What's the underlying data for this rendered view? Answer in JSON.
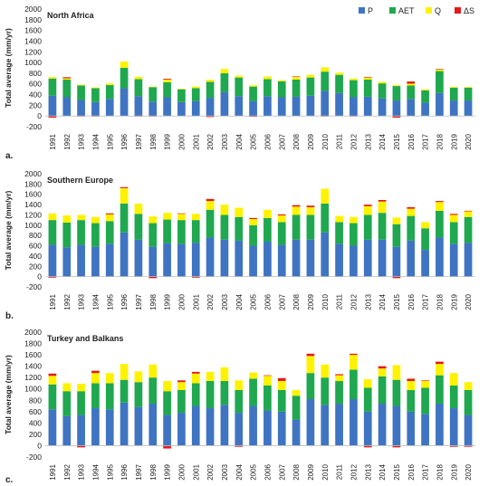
{
  "legend": [
    {
      "key": "P",
      "label": "P",
      "color": "#3F74C2"
    },
    {
      "key": "AET",
      "label": "AET",
      "color": "#1FA84F"
    },
    {
      "key": "Q",
      "label": "Q",
      "color": "#FFF200"
    },
    {
      "key": "dS",
      "label": "ΔS",
      "color": "#E3191B"
    }
  ],
  "legend_placement": "top-right (inside panel a)",
  "chart_data": [
    {
      "type": "bar",
      "stacked": true,
      "panel_label": "a.",
      "title": "North Africa",
      "ylabel": "Total average (mm/yr)",
      "xlabel": "",
      "ylim": [
        -200,
        2000
      ],
      "yticks": [
        -200,
        0,
        200,
        400,
        600,
        800,
        1000,
        1200,
        1400,
        1600,
        1800,
        2000
      ],
      "grid": false,
      "categories": [
        "1991",
        "1992",
        "1993",
        "1994",
        "1995",
        "1996",
        "1997",
        "1998",
        "1999",
        "2000",
        "2001",
        "2002",
        "2003",
        "2004",
        "2005",
        "2006",
        "2007",
        "2008",
        "2009",
        "2010",
        "2011",
        "2012",
        "2013",
        "2014",
        "2015",
        "2016",
        "2017",
        "2018",
        "2019",
        "2020"
      ],
      "series": [
        {
          "name": "P",
          "values": [
            380,
            350,
            300,
            260,
            320,
            520,
            370,
            270,
            350,
            260,
            280,
            340,
            450,
            370,
            280,
            370,
            350,
            360,
            380,
            470,
            430,
            350,
            360,
            330,
            290,
            320,
            250,
            430,
            290,
            290
          ]
        },
        {
          "name": "AET",
          "values": [
            320,
            330,
            270,
            260,
            260,
            380,
            320,
            270,
            280,
            240,
            240,
            300,
            350,
            350,
            270,
            320,
            300,
            320,
            340,
            360,
            340,
            320,
            320,
            280,
            270,
            250,
            230,
            410,
            240,
            240
          ]
        },
        {
          "name": "Q",
          "values": [
            30,
            25,
            15,
            15,
            30,
            120,
            45,
            10,
            50,
            10,
            30,
            40,
            80,
            35,
            25,
            50,
            20,
            50,
            50,
            80,
            40,
            30,
            40,
            30,
            20,
            35,
            20,
            30,
            15,
            15
          ]
        },
        {
          "name": "ΔS",
          "values": [
            -30,
            20,
            -10,
            -10,
            0,
            0,
            -10,
            -10,
            15,
            0,
            0,
            -20,
            0,
            0,
            -15,
            0,
            0,
            10,
            0,
            -10,
            0,
            -10,
            10,
            0,
            -30,
            40,
            0,
            10,
            0,
            0
          ]
        }
      ]
    },
    {
      "type": "bar",
      "stacked": true,
      "panel_label": "b.",
      "title": "Southern Europe",
      "ylabel": "Total average (mm/yr)",
      "xlabel": "",
      "ylim": [
        -200,
        2000
      ],
      "yticks": [
        -200,
        0,
        200,
        400,
        600,
        800,
        1000,
        1200,
        1400,
        1600,
        1800,
        2000
      ],
      "grid": false,
      "categories": [
        "1991",
        "1992",
        "1993",
        "1994",
        "1995",
        "1996",
        "1997",
        "1998",
        "1999",
        "2000",
        "2001",
        "2002",
        "2003",
        "2004",
        "2005",
        "2006",
        "2007",
        "2008",
        "2009",
        "2010",
        "2011",
        "2012",
        "2013",
        "2014",
        "2015",
        "2016",
        "2017",
        "2018",
        "2019",
        "2020"
      ],
      "series": [
        {
          "name": "P",
          "values": [
            620,
            570,
            620,
            580,
            640,
            860,
            720,
            580,
            650,
            640,
            660,
            760,
            720,
            700,
            600,
            680,
            620,
            720,
            720,
            860,
            640,
            600,
            720,
            720,
            580,
            700,
            520,
            760,
            640,
            660
          ]
        },
        {
          "name": "AET",
          "values": [
            480,
            480,
            480,
            460,
            440,
            560,
            500,
            460,
            460,
            460,
            440,
            540,
            480,
            460,
            400,
            460,
            440,
            480,
            480,
            560,
            420,
            440,
            480,
            520,
            440,
            480,
            420,
            520,
            420,
            500
          ]
        },
        {
          "name": "Q",
          "values": [
            130,
            140,
            100,
            120,
            130,
            300,
            200,
            130,
            130,
            120,
            120,
            170,
            200,
            180,
            120,
            160,
            130,
            160,
            150,
            290,
            120,
            120,
            170,
            220,
            130,
            140,
            120,
            170,
            140,
            110
          ]
        },
        {
          "name": "ΔS",
          "values": [
            -20,
            0,
            0,
            0,
            20,
            20,
            0,
            -30,
            0,
            10,
            -20,
            40,
            0,
            0,
            20,
            0,
            20,
            30,
            30,
            0,
            0,
            0,
            30,
            30,
            -30,
            30,
            0,
            20,
            20,
            10
          ]
        }
      ]
    },
    {
      "type": "bar",
      "stacked": true,
      "panel_label": "c.",
      "title": "Turkey and Balkans",
      "ylabel": "Total average (mm/yr)",
      "xlabel": "",
      "ylim": [
        -200,
        2000
      ],
      "yticks": [
        -200,
        0,
        200,
        400,
        600,
        800,
        1000,
        1200,
        1400,
        1600,
        1800,
        2000
      ],
      "grid": false,
      "categories": [
        "1991",
        "1992",
        "1993",
        "1994",
        "1995",
        "1996",
        "1997",
        "1998",
        "1999",
        "2000",
        "2001",
        "2002",
        "2003",
        "2004",
        "2005",
        "2006",
        "2007",
        "2008",
        "2009",
        "2010",
        "2011",
        "2012",
        "2013",
        "2014",
        "2015",
        "2016",
        "2017",
        "2018",
        "2019",
        "2020"
      ],
      "series": [
        {
          "name": "P",
          "values": [
            640,
            520,
            540,
            660,
            640,
            760,
            680,
            740,
            540,
            580,
            700,
            660,
            720,
            580,
            700,
            620,
            600,
            460,
            820,
            720,
            740,
            820,
            600,
            740,
            700,
            600,
            560,
            740,
            660,
            540
          ]
        },
        {
          "name": "AET",
          "values": [
            440,
            440,
            420,
            440,
            460,
            400,
            440,
            460,
            420,
            400,
            400,
            480,
            420,
            400,
            480,
            440,
            380,
            420,
            460,
            480,
            400,
            520,
            420,
            480,
            460,
            380,
            460,
            500,
            400,
            440
          ]
        },
        {
          "name": "Q",
          "values": [
            150,
            140,
            130,
            180,
            180,
            280,
            190,
            230,
            180,
            140,
            170,
            160,
            240,
            170,
            110,
            170,
            160,
            100,
            300,
            230,
            100,
            260,
            150,
            140,
            260,
            160,
            120,
            200,
            220,
            140
          ]
        },
        {
          "name": "ΔS",
          "values": [
            40,
            0,
            -30,
            40,
            0,
            0,
            0,
            0,
            -50,
            30,
            30,
            0,
            0,
            -20,
            0,
            10,
            50,
            0,
            40,
            0,
            20,
            20,
            -30,
            40,
            -30,
            40,
            10,
            40,
            -20,
            -20
          ]
        }
      ]
    }
  ]
}
